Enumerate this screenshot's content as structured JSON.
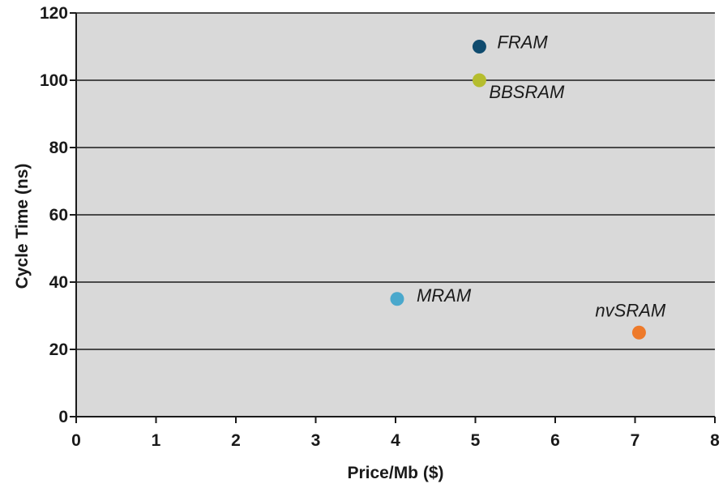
{
  "chart_data": {
    "type": "scatter",
    "title": "",
    "xlabel": "Price/Mb ($)",
    "ylabel": "Cycle Time (ns)",
    "xlim": [
      0,
      8
    ],
    "ylim": [
      0,
      120
    ],
    "xticks": [
      0,
      1,
      2,
      3,
      4,
      5,
      6,
      7,
      8
    ],
    "yticks": [
      0,
      20,
      40,
      60,
      80,
      100,
      120
    ],
    "grid": "horizontal",
    "legend": "none",
    "plot_background": "#d9d9d9",
    "points": [
      {
        "label": "FRAM",
        "x": 5.05,
        "y": 110,
        "color": "#0f4b6e"
      },
      {
        "label": "BBSRAM",
        "x": 5.05,
        "y": 100,
        "color": "#b5bd2e"
      },
      {
        "label": "MRAM",
        "x": 4.02,
        "y": 35,
        "color": "#4aa8cc"
      },
      {
        "label": "nvSRAM",
        "x": 7.05,
        "y": 25,
        "color": "#ee7a2a"
      }
    ]
  }
}
